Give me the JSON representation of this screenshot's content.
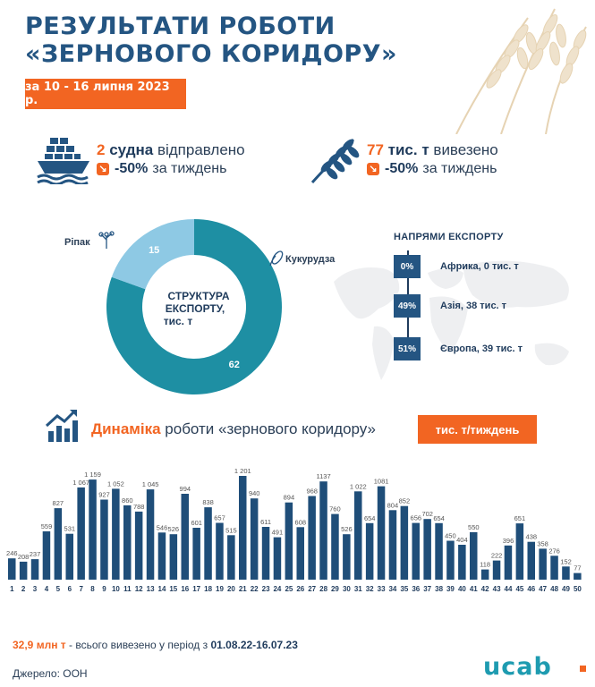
{
  "header": {
    "title_line1": "РЕЗУЛЬТАТИ РОБОТИ",
    "title_line2": "«ЗЕРНОВОГО КОРИДОРУ»",
    "date_range": "за 10 - 16 липня 2023 р."
  },
  "stats": {
    "ships": {
      "count": "2",
      "unit": "судна",
      "text": "відправлено",
      "change": "-50%",
      "change_text": "за тиждень"
    },
    "volume": {
      "count": "77",
      "unit": "тис. т",
      "text": "вивезено",
      "change": "-50%",
      "change_text": "за тиждень"
    }
  },
  "structure": {
    "title": "СТРУКТУРА ЕКСПОРТУ, тис. т",
    "title_line1": "СТРУКТУРА",
    "title_line2": "ЕКСПОРТУ,",
    "title_line3": "тис. т"
  },
  "directions": {
    "title": "НАПРЯМИ ЕКСПОРТУ",
    "items": [
      {
        "pct": "0%",
        "label": "Африка, 0 тис. т"
      },
      {
        "pct": "49%",
        "label": "Азія, 38 тис. т"
      },
      {
        "pct": "51%",
        "label": "Європа, 39 тис. т"
      }
    ]
  },
  "dynamics": {
    "title_accent": "Динаміка",
    "title_rest": "роботи «зернового коридору»",
    "unit": "тис. т/тиждень"
  },
  "footer": {
    "total_value": "32,9 млн т",
    "total_text": "- всього вивезено у період з",
    "total_period": "01.08.22-16.07.23",
    "source": "Джерело: ООН",
    "logo": "ucab"
  },
  "colors": {
    "navy": "#245582",
    "teal": "#1e8fa3",
    "light_blue": "#8ec9e4",
    "orange": "#f26522",
    "bar": "#1f4e79"
  },
  "chart_data": [
    {
      "type": "pie",
      "title": "СТРУКТУРА ЕКСПОРТУ, тис. т",
      "categories": [
        "Кукурудза",
        "Ріпак"
      ],
      "values": [
        62,
        15
      ],
      "colors": [
        "#1e8fa3",
        "#8ec9e4"
      ]
    },
    {
      "type": "bar",
      "title": "Динаміка роботи «зернового коридору»",
      "ylabel": "тис. т/тиждень",
      "categories": [
        "1",
        "2",
        "3",
        "4",
        "5",
        "6",
        "7",
        "8",
        "9",
        "10",
        "11",
        "12",
        "13",
        "14",
        "15",
        "16",
        "17",
        "18",
        "19",
        "20",
        "21",
        "22",
        "23",
        "24",
        "25",
        "26",
        "27",
        "28",
        "29",
        "30",
        "31",
        "32",
        "33",
        "34",
        "35",
        "36",
        "37",
        "38",
        "39",
        "40",
        "41",
        "42",
        "43",
        "44",
        "45",
        "46",
        "47",
        "48",
        "49",
        "50"
      ],
      "values": [
        246,
        208,
        237,
        559,
        827,
        531,
        1067,
        1159,
        927,
        1052,
        860,
        788,
        1045,
        546,
        526,
        994,
        601,
        838,
        657,
        515,
        1201,
        940,
        611,
        491,
        894,
        608,
        968,
        1137,
        760,
        526,
        1022,
        654,
        1081,
        804,
        852,
        656,
        702,
        654,
        450,
        404,
        550,
        118,
        222,
        396,
        651,
        438,
        358,
        276,
        152,
        77
      ],
      "labels": [
        "246",
        "208",
        "237",
        "559",
        "827",
        "531",
        "1 067",
        "1 159",
        "927",
        "1 052",
        "860",
        "788",
        "1 045",
        "546",
        "526",
        "994",
        "601",
        "838",
        "657",
        "515",
        "1 201",
        "940",
        "611",
        "491",
        "894",
        "608",
        "968",
        "1137",
        "760",
        "526",
        "1 022",
        "654",
        "1081",
        "804",
        "852",
        "656",
        "702",
        "654",
        "450",
        "404",
        "550",
        "118",
        "222",
        "396",
        "651",
        "438",
        "358",
        "276",
        "152",
        "77"
      ],
      "ylim": [
        0,
        1201
      ]
    }
  ]
}
